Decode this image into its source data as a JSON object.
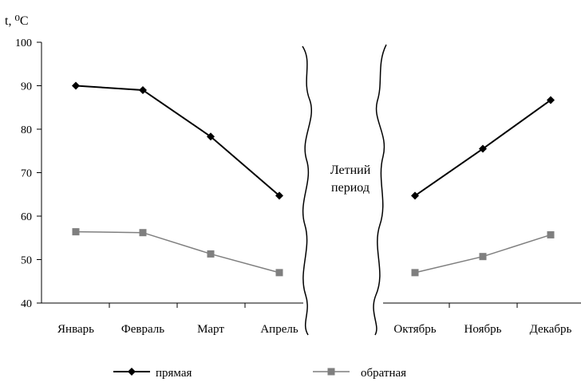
{
  "chart_data": {
    "type": "line",
    "ylabel": "t, ⁰C",
    "ylim": [
      40,
      100
    ],
    "yticks": [
      40,
      50,
      60,
      70,
      80,
      90,
      100
    ],
    "grid": false,
    "legend_position": "bottom",
    "annotation": [
      "Летний",
      "период"
    ],
    "panels": [
      {
        "categories": [
          "Январь",
          "Февраль",
          "Март",
          "Апрель"
        ],
        "series": [
          {
            "name": "прямая",
            "values": [
              90,
              89,
              78.3,
              64.7
            ]
          },
          {
            "name": "обратная",
            "values": [
              56.4,
              56.2,
              51.3,
              47
            ]
          }
        ]
      },
      {
        "categories": [
          "Октябрь",
          "Ноябрь",
          "Декабрь"
        ],
        "series": [
          {
            "name": "прямая",
            "values": [
              64.7,
              75.5,
              86.7
            ]
          },
          {
            "name": "обратная",
            "values": [
              47,
              50.7,
              55.7
            ]
          }
        ]
      }
    ],
    "colors": {
      "прямая": "#000000",
      "обратная": "#7f7f7f"
    }
  }
}
